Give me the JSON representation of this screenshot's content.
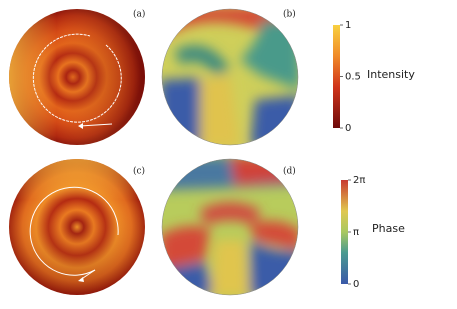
{
  "panels": [
    {
      "label": "(a)"
    },
    {
      "label": "(b)"
    },
    {
      "label": "(c)"
    },
    {
      "label": "(d)"
    }
  ],
  "colorbars": [
    {
      "title": "Intensity",
      "lim": [
        0,
        1
      ],
      "ticks": [
        0,
        0.5,
        1
      ]
    },
    {
      "title": "Phase",
      "lim": [
        0,
        6.2832
      ],
      "ticks": [
        0,
        {
          "value": 3.1416,
          "label": "π"
        },
        {
          "value": 6.2832,
          "label": "2π"
        }
      ]
    }
  ]
}
